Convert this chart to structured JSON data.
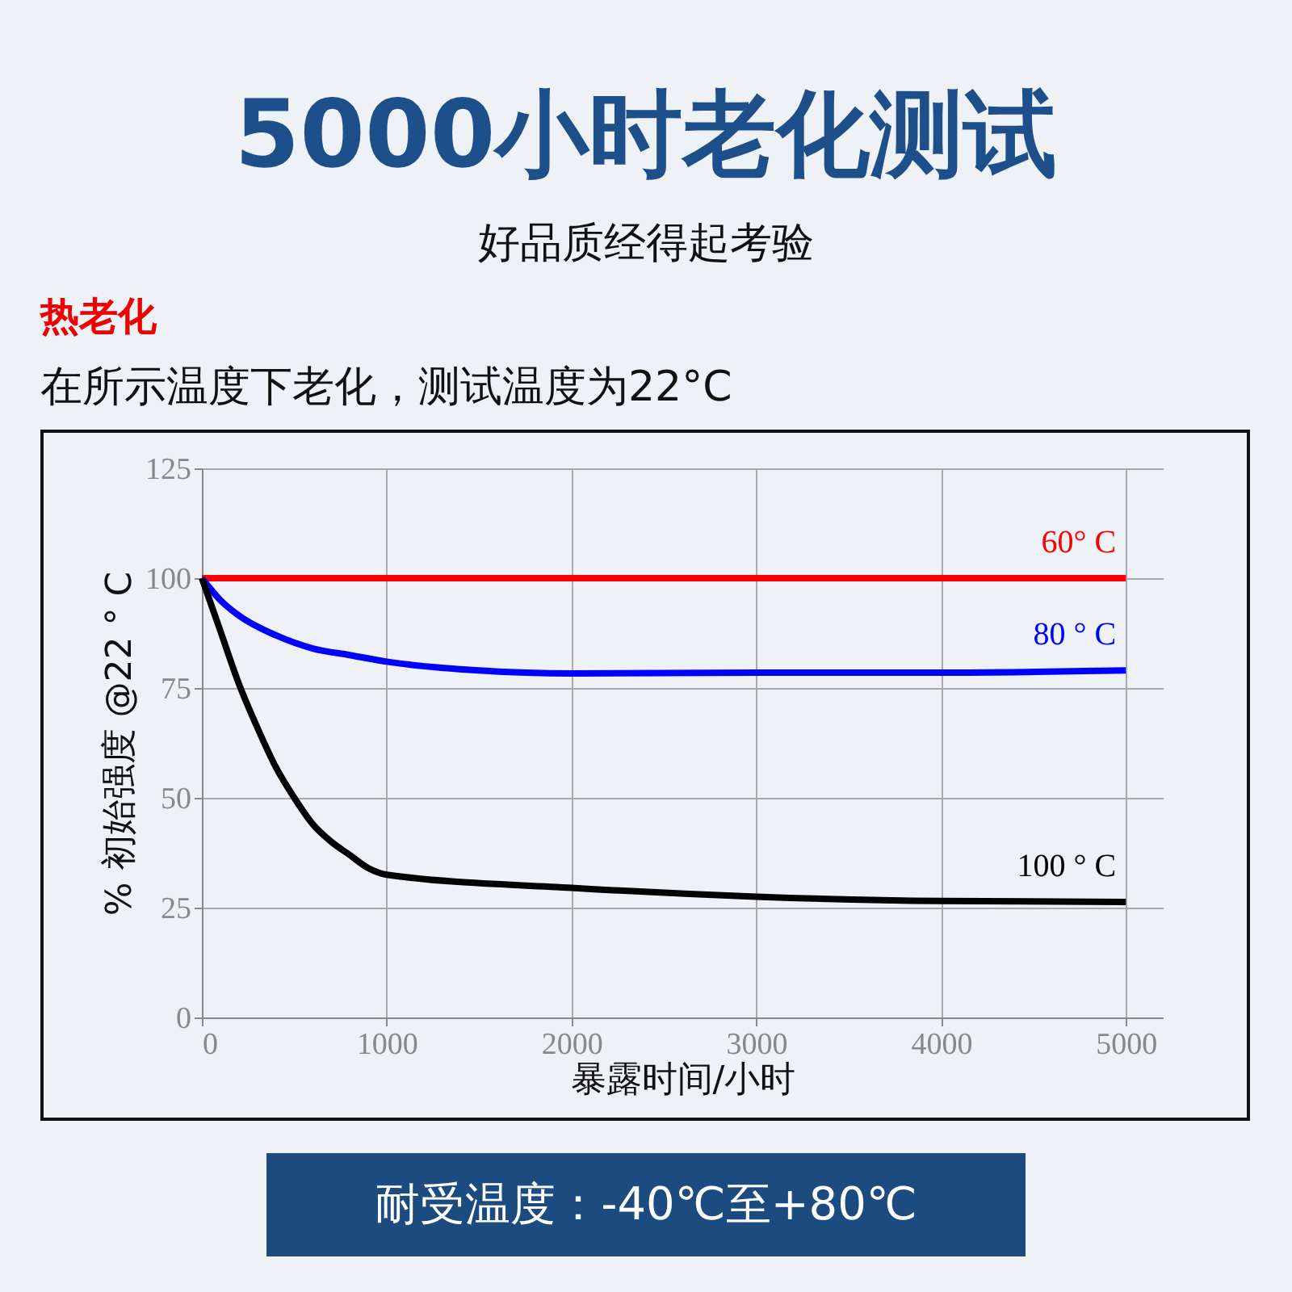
{
  "chart_data": {
    "type": "line",
    "title": "5000小时老化测试",
    "subtitle": "好品质经得起考验",
    "annotations": [
      "热老化",
      "在所示温度下老化，测试温度为22°C",
      "耐受温度：-40℃至+80℃"
    ],
    "xlabel": "暴露时间/小时",
    "ylabel": "% 初始强度 @22 ° C",
    "series": [
      {
        "name": "60° C",
        "color": "#ff0000",
        "x": [
          0,
          5000
        ],
        "values": [
          100,
          100
        ]
      },
      {
        "name": "80 ° C",
        "color": "#0000ff",
        "x": [
          0,
          100,
          200,
          400,
          600,
          800,
          1000,
          1500,
          2000,
          3000,
          4000,
          5000
        ],
        "values": [
          100,
          95,
          91.5,
          87,
          84,
          82.5,
          81,
          79,
          78.3,
          78.5,
          78.5,
          79
        ]
      },
      {
        "name": "100 ° C",
        "color": "#000000",
        "x": [
          0,
          100,
          200,
          300,
          400,
          500,
          600,
          700,
          800,
          900,
          1000,
          2000,
          3000,
          4000,
          5000
        ],
        "values": [
          100,
          88,
          76,
          66,
          57,
          50,
          44,
          40,
          37,
          34,
          32.5,
          29.5,
          27.5,
          26.5,
          26.3
        ]
      }
    ],
    "xlim": [
      0,
      5200
    ],
    "ylim": [
      0,
      125
    ],
    "xticks": [
      0,
      1000,
      2000,
      3000,
      4000,
      5000
    ],
    "yticks": [
      0,
      25,
      50,
      75,
      100,
      125
    ],
    "grid": true,
    "legend": false
  }
}
